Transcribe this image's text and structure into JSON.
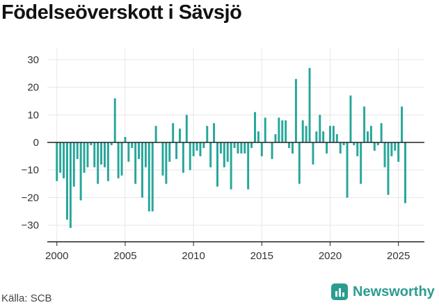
{
  "title": "Födelseöverskott i Sävsjö",
  "source": "Källa: SCB",
  "brand": {
    "name": "Newsworthy",
    "icon": "newsworthy-logo-icon"
  },
  "colors": {
    "bar": "#26a69a",
    "axis": "#222222",
    "grid": "#e6e6e6",
    "brand": "#2a9d8f"
  },
  "chart_data": {
    "type": "bar",
    "title": "",
    "xlabel": "",
    "ylabel": "",
    "series": [
      {
        "values": [
          -14,
          -11,
          -13,
          -28,
          -31,
          -16,
          -6,
          -21,
          -11,
          -9,
          -1,
          -9,
          -15,
          -8,
          -9,
          -14,
          -1,
          16,
          -13,
          -12,
          2,
          -7,
          -2,
          -15,
          -6,
          -20,
          -9,
          -25,
          -25,
          6,
          0,
          -12,
          -15,
          -7,
          7,
          -6,
          5,
          -11,
          10,
          -10,
          -5,
          -3,
          -5,
          -2,
          6,
          -9,
          7,
          -16,
          -4,
          -9,
          -7,
          -17,
          -2,
          -4,
          -4,
          -4,
          -17,
          -2,
          11,
          4,
          -5,
          9,
          0,
          -6,
          3,
          9,
          8,
          8,
          -2,
          -4,
          23,
          -15,
          8,
          6,
          27,
          -8,
          4,
          10,
          4,
          -4,
          6,
          6,
          3,
          -4,
          -1,
          -20,
          17,
          -1,
          -5,
          -15,
          13,
          4,
          6,
          -3,
          -1,
          7,
          -9,
          -19,
          -5,
          -3,
          -7,
          13,
          -22
        ]
      }
    ],
    "x_start_year": 2000,
    "periods_per_year": 4,
    "xlim": [
      1999.3,
      2026.9
    ],
    "xticks": [
      "2000",
      "2005",
      "2010",
      "2015",
      "2020",
      "2025"
    ],
    "ylim": [
      -36,
      34
    ],
    "yticks": [
      "30",
      "20",
      "10",
      "0",
      "−10",
      "−20",
      "−30"
    ],
    "grid": true,
    "legend": "none"
  }
}
